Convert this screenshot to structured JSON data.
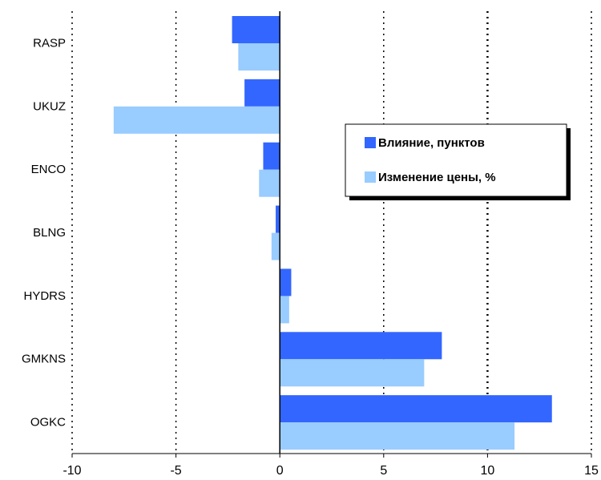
{
  "chart_data": {
    "type": "bar",
    "orientation": "horizontal",
    "categories": [
      "RASP",
      "UKUZ",
      "ENCO",
      "BLNG",
      "HYDRS",
      "GMKNS",
      "OGKC"
    ],
    "series": [
      {
        "name": "Влияние, пунктов",
        "color": "#3366ff",
        "values": [
          -2.3,
          -1.7,
          -0.8,
          -0.2,
          0.55,
          7.8,
          13.1
        ]
      },
      {
        "name": "Изменение цены, %",
        "color": "#99ccff",
        "values": [
          -2.0,
          -8.0,
          -1.0,
          -0.4,
          0.45,
          6.95,
          11.3
        ]
      }
    ],
    "x_ticks": [
      "-10",
      "-5",
      "0",
      "5",
      "10",
      "15"
    ],
    "xlim": [
      -10,
      15
    ],
    "grid": "vertical dotted",
    "legend_position": "right-center",
    "title": "",
    "xlabel": "",
    "ylabel": ""
  }
}
